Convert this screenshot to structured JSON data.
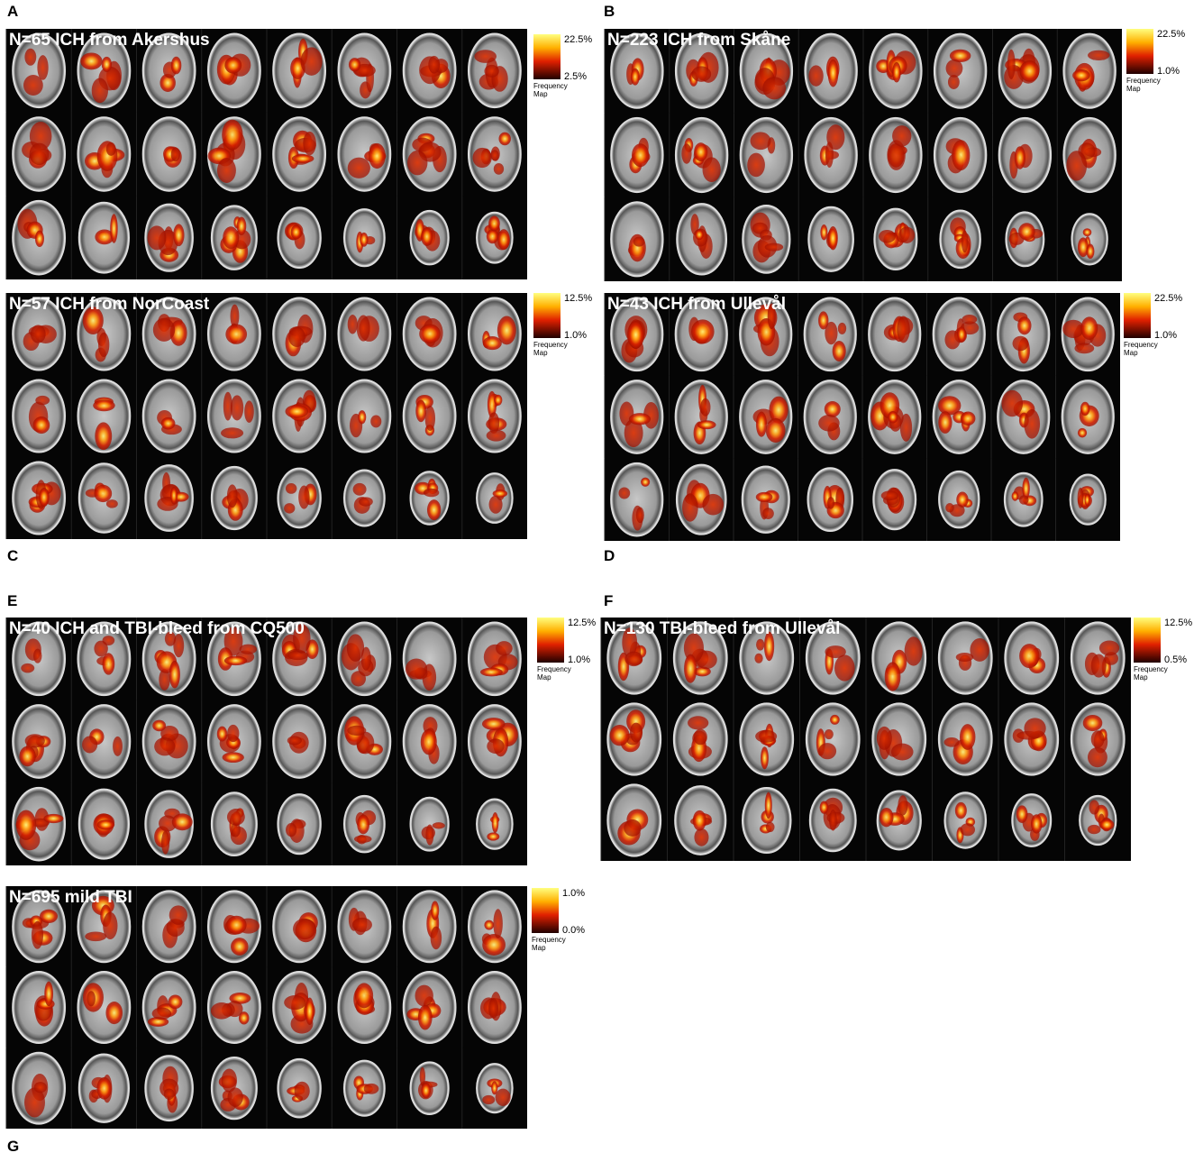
{
  "panels": [
    {
      "letter": "A",
      "title": "N=65 ICH from Akershus",
      "colorbar": {
        "max": "22.5%",
        "min": "2.5%",
        "label": [
          "Frequency",
          "Map"
        ]
      }
    },
    {
      "letter": "B",
      "title": "N=223 ICH from Skåne",
      "colorbar": {
        "max": "22.5%",
        "min": "1.0%",
        "label": [
          "Frequency",
          "Map"
        ]
      }
    },
    {
      "letter": "C",
      "title": "N=57 ICH from NorCoast",
      "colorbar": {
        "max": "12.5%",
        "min": "1.0%",
        "label": [
          "Frequency",
          "Map"
        ]
      }
    },
    {
      "letter": "D",
      "title": "N=43 ICH from Ullevål",
      "colorbar": {
        "max": "22.5%",
        "min": "1.0%",
        "label": [
          "Frequency",
          "Map"
        ]
      }
    },
    {
      "letter": "E",
      "title": "N=40 ICH and TBI-bleed from CQ500",
      "colorbar": {
        "max": "12.5%",
        "min": "1.0%",
        "label": [
          "Frequency",
          "Map"
        ]
      }
    },
    {
      "letter": "F",
      "title": "N=130 TBI-bleed from Ullevål",
      "colorbar": {
        "max": "12.5%",
        "min": "0.5%",
        "label": [
          "Frequency",
          "Map"
        ]
      }
    },
    {
      "letter": "G",
      "title": "N=695 mild TBI",
      "colorbar": {
        "max": "1.0%",
        "min": "0.0%",
        "label": [
          "Frequency",
          "Map"
        ]
      }
    }
  ]
}
